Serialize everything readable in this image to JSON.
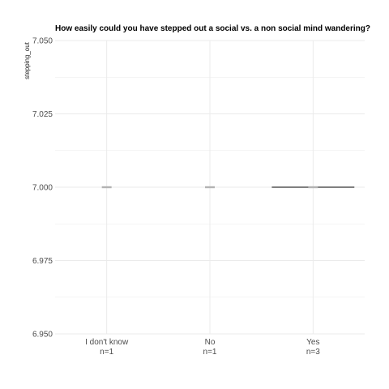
{
  "chart_data": {
    "type": "boxplot",
    "title": "How easily could you have stepped out a social vs. a non social mind wandering?",
    "xlabel": "",
    "ylabel": "stepping_out",
    "ylim": [
      6.95,
      7.05
    ],
    "yticks": [
      6.95,
      6.975,
      7.0,
      7.025,
      7.05
    ],
    "ytick_labels": [
      "6.950",
      "6.975",
      "7.000",
      "7.025",
      "7.050"
    ],
    "grid": true,
    "categories": [
      {
        "label": "I don't know",
        "n_label": "n=1",
        "value": 7.0,
        "n": 1
      },
      {
        "label": "No",
        "n_label": "n=1",
        "value": 7.0,
        "n": 1
      },
      {
        "label": "Yes",
        "n_label": "n=3",
        "value": 7.0,
        "n": 3
      }
    ],
    "colors": {
      "grid": "#ebebeb",
      "box_line": "#000000",
      "point": "#b3b3b3",
      "tick_text": "#4d4d4d"
    }
  }
}
